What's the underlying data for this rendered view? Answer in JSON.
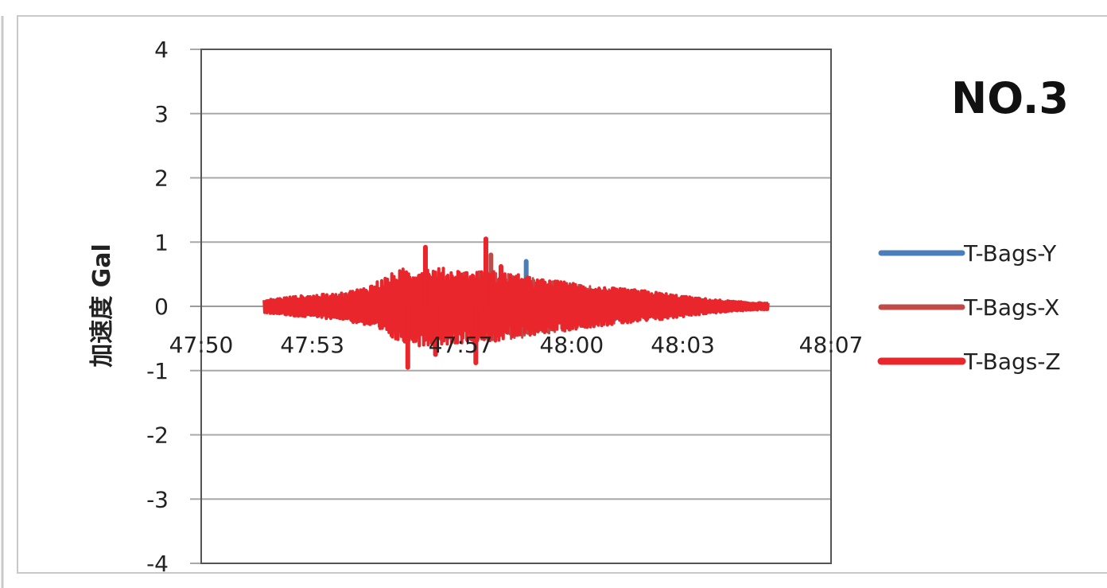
{
  "chart_data": {
    "type": "line",
    "title": "NO.3",
    "ylabel": "加速度 Gal",
    "xlabel": "",
    "ylim": [
      -4,
      4
    ],
    "yticks": [
      4,
      3,
      2,
      1,
      0,
      -1,
      -2,
      -3,
      -4
    ],
    "xlim": [
      "47:50",
      "48:07"
    ],
    "xticks": [
      "47:50",
      "47:53",
      "47:57",
      "48:00",
      "48:03",
      "48:07"
    ],
    "grid": true,
    "legend_position": "right",
    "signal_span": [
      "47:52",
      "48:05"
    ],
    "series": [
      {
        "name": "T-Bags-Y",
        "color": "#4a7ebb",
        "envelope": [
          [
            0.0,
            0.05
          ],
          [
            0.1,
            0.12
          ],
          [
            0.2,
            0.2
          ],
          [
            0.28,
            0.35
          ],
          [
            0.35,
            0.4
          ],
          [
            0.42,
            0.45
          ],
          [
            0.5,
            0.42
          ],
          [
            0.6,
            0.32
          ],
          [
            0.7,
            0.22
          ],
          [
            0.8,
            0.14
          ],
          [
            0.9,
            0.08
          ],
          [
            1.0,
            0.04
          ]
        ],
        "peaks": [
          {
            "t": 0.52,
            "v": 0.7
          }
        ]
      },
      {
        "name": "T-Bags-X",
        "color": "#be4b48",
        "envelope": [
          [
            0.0,
            0.06
          ],
          [
            0.1,
            0.14
          ],
          [
            0.2,
            0.25
          ],
          [
            0.28,
            0.45
          ],
          [
            0.35,
            0.5
          ],
          [
            0.42,
            0.55
          ],
          [
            0.5,
            0.5
          ],
          [
            0.6,
            0.38
          ],
          [
            0.7,
            0.26
          ],
          [
            0.8,
            0.16
          ],
          [
            0.9,
            0.09
          ],
          [
            1.0,
            0.05
          ]
        ],
        "peaks": [
          {
            "t": 0.45,
            "v": 0.8
          }
        ]
      },
      {
        "name": "T-Bags-Z",
        "color": "#e8262b",
        "envelope": [
          [
            0.0,
            0.1
          ],
          [
            0.05,
            0.15
          ],
          [
            0.1,
            0.18
          ],
          [
            0.15,
            0.2
          ],
          [
            0.2,
            0.3
          ],
          [
            0.25,
            0.5
          ],
          [
            0.28,
            0.6
          ],
          [
            0.32,
            0.62
          ],
          [
            0.38,
            0.58
          ],
          [
            0.42,
            0.55
          ],
          [
            0.46,
            0.55
          ],
          [
            0.5,
            0.5
          ],
          [
            0.55,
            0.42
          ],
          [
            0.6,
            0.38
          ],
          [
            0.65,
            0.32
          ],
          [
            0.7,
            0.28
          ],
          [
            0.75,
            0.25
          ],
          [
            0.8,
            0.2
          ],
          [
            0.85,
            0.14
          ],
          [
            0.9,
            0.1
          ],
          [
            0.95,
            0.07
          ],
          [
            1.0,
            0.05
          ]
        ],
        "peaks": [
          {
            "t": 0.285,
            "v": -0.95
          },
          {
            "t": 0.32,
            "v": 0.92
          },
          {
            "t": 0.44,
            "v": 1.05
          },
          {
            "t": 0.42,
            "v": -0.88
          },
          {
            "t": 0.34,
            "v": -0.75
          },
          {
            "t": 0.47,
            "v": 0.62
          }
        ]
      }
    ]
  }
}
